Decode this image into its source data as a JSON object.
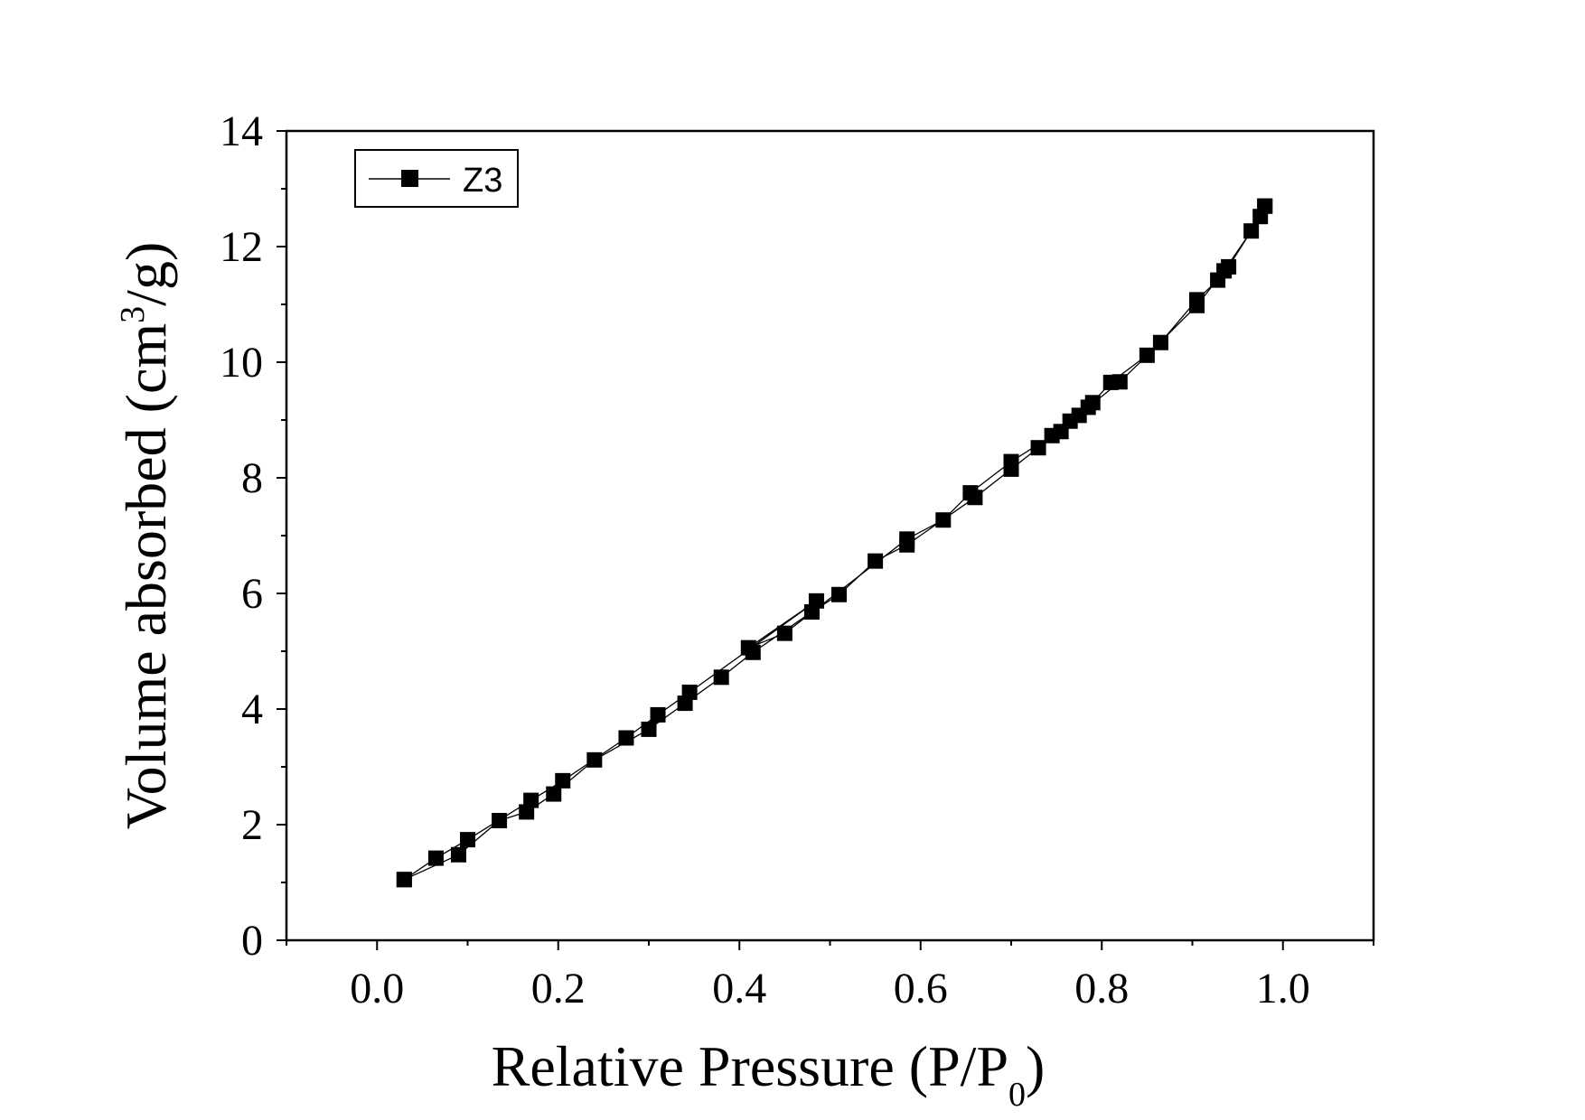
{
  "chart_data": {
    "type": "line",
    "title": "",
    "xlabel_main": "Relative Pressure (P/P",
    "xlabel_sub": "0",
    "xlabel_end": ")",
    "ylabel_main": "Volume absorbed (cm",
    "ylabel_sup": "3",
    "ylabel_end": "/g)",
    "xlim": [
      -0.1,
      1.1
    ],
    "ylim": [
      0,
      14
    ],
    "xticks": [
      0.0,
      0.2,
      0.4,
      0.6,
      0.8,
      1.0
    ],
    "xtick_labels": [
      "0.0",
      "0.2",
      "0.4",
      "0.6",
      "0.8",
      "1.0"
    ],
    "yticks": [
      0,
      2,
      4,
      6,
      8,
      10,
      12,
      14
    ],
    "ytick_labels": [
      "0",
      "2",
      "4",
      "6",
      "8",
      "10",
      "12",
      "14"
    ],
    "grid": false,
    "legend_position": "top-left",
    "series": [
      {
        "name": "Z3",
        "marker": "square",
        "color": "#000000",
        "adsorption": [
          [
            0.03,
            1.05
          ],
          [
            0.09,
            1.48
          ],
          [
            0.135,
            2.07
          ],
          [
            0.165,
            2.22
          ],
          [
            0.195,
            2.53
          ],
          [
            0.24,
            3.12
          ],
          [
            0.3,
            3.65
          ],
          [
            0.34,
            4.1
          ],
          [
            0.38,
            4.55
          ],
          [
            0.415,
            4.98
          ],
          [
            0.48,
            5.68
          ],
          [
            0.51,
            5.98
          ],
          [
            0.55,
            6.56
          ],
          [
            0.585,
            6.84
          ],
          [
            0.66,
            7.66
          ],
          [
            0.7,
            8.15
          ],
          [
            0.73,
            8.52
          ],
          [
            0.755,
            8.8
          ],
          [
            0.775,
            9.08
          ],
          [
            0.79,
            9.3
          ],
          [
            0.81,
            9.65
          ],
          [
            0.85,
            10.12
          ],
          [
            0.905,
            10.98
          ],
          [
            0.935,
            11.58
          ],
          [
            0.965,
            12.27
          ],
          [
            0.98,
            12.7
          ]
        ],
        "desorption": [
          [
            0.98,
            12.7
          ],
          [
            0.975,
            12.52
          ],
          [
            0.94,
            11.65
          ],
          [
            0.928,
            11.42
          ],
          [
            0.905,
            11.08
          ],
          [
            0.865,
            10.34
          ],
          [
            0.82,
            9.66
          ],
          [
            0.785,
            9.22
          ],
          [
            0.765,
            8.98
          ],
          [
            0.745,
            8.73
          ],
          [
            0.7,
            8.28
          ],
          [
            0.655,
            7.74
          ],
          [
            0.625,
            7.27
          ],
          [
            0.585,
            6.94
          ],
          [
            0.45,
            5.31
          ],
          [
            0.41,
            5.06
          ],
          [
            0.485,
            5.87
          ],
          [
            0.345,
            4.29
          ],
          [
            0.31,
            3.9
          ],
          [
            0.275,
            3.5
          ],
          [
            0.205,
            2.76
          ],
          [
            0.17,
            2.42
          ],
          [
            0.1,
            1.74
          ],
          [
            0.065,
            1.42
          ],
          [
            0.03,
            1.05
          ]
        ]
      }
    ]
  }
}
